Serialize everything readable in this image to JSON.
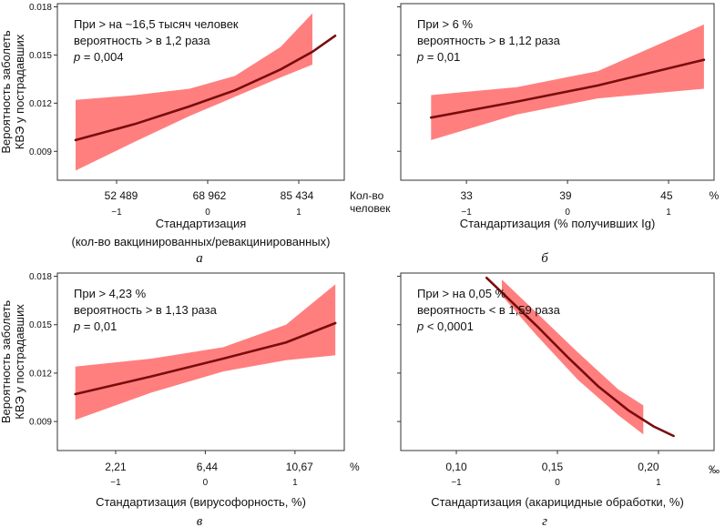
{
  "chart_data": [
    {
      "type": "line",
      "panel_letter": "а",
      "ylabel_lines": [
        "Вероятность заболеть",
        "КВЭ у пострадавших"
      ],
      "xlabel_lines": [
        "Стандартизация",
        "(кол-во вакцинированных/ревакцинированных)"
      ],
      "xlim": [
        -1.65,
        1.5
      ],
      "ylim": [
        0.0072,
        0.0182
      ],
      "xticks": [
        -1,
        0,
        1
      ],
      "xtick_labels": [
        "−1",
        "0",
        "1"
      ],
      "yticks": [
        0.009,
        0.012,
        0.015,
        0.018
      ],
      "ytick_labels": [
        "0.009",
        "0.012",
        "0.015",
        "0.018"
      ],
      "original_values": [
        {
          "x": -0.95,
          "label": "52 489"
        },
        {
          "x": 0.02,
          "label": "68 962"
        },
        {
          "x": 0.98,
          "label": "85 434"
        }
      ],
      "unit_lines": [
        "Кол-во",
        "человек"
      ],
      "annotation": {
        "line1": "При > на ~16,5 тысяч человек",
        "line2": "вероятность > в 1,2 раза",
        "p_symbol": "p",
        "p_rest": " = 0,004"
      },
      "series": {
        "line_x": [
          -1.45,
          -0.8,
          -0.2,
          0.3,
          0.8,
          1.15,
          1.4
        ],
        "line_y": [
          0.0097,
          0.0107,
          0.0118,
          0.0128,
          0.0141,
          0.0152,
          0.0162
        ],
        "band_x": [
          -1.45,
          -0.8,
          -0.2,
          0.3,
          0.8,
          1.15
        ],
        "band_low": [
          0.0078,
          0.0096,
          0.0112,
          0.0124,
          0.0136,
          0.0144
        ],
        "band_high": [
          0.0122,
          0.0125,
          0.0129,
          0.0137,
          0.0155,
          0.0176
        ]
      }
    },
    {
      "type": "line",
      "panel_letter": "б",
      "ylabel_lines": [],
      "xlabel_lines": [
        "Стандартизация (% получивших Ig)"
      ],
      "xlim": [
        -1.65,
        1.45
      ],
      "ylim": [
        0.0072,
        0.0182
      ],
      "xticks": [
        -1,
        0,
        1
      ],
      "xtick_labels": [
        "−1",
        "0",
        "1"
      ],
      "yticks": [
        0.009,
        0.012,
        0.015,
        0.018
      ],
      "ytick_labels": [],
      "original_values": [
        {
          "x": -1.0,
          "label": "33"
        },
        {
          "x": -0.02,
          "label": "39"
        },
        {
          "x": 0.98,
          "label": "45"
        }
      ],
      "unit_lines": [
        "%"
      ],
      "annotation": {
        "line1": "При > 6 %",
        "line2": "вероятность > в 1,12 раза",
        "p_symbol": "p",
        "p_rest": " = 0,01"
      },
      "series": {
        "line_x": [
          -1.35,
          -0.5,
          0.3,
          1.35
        ],
        "line_y": [
          0.0111,
          0.0121,
          0.0131,
          0.0147
        ],
        "band_x": [
          -1.35,
          -0.5,
          0.3,
          1.35
        ],
        "band_low": [
          0.0097,
          0.0113,
          0.0123,
          0.0129
        ],
        "band_high": [
          0.0125,
          0.013,
          0.014,
          0.0169
        ]
      }
    },
    {
      "type": "line",
      "panel_letter": "в",
      "ylabel_lines": [
        "Вероятность заболеть",
        "КВЭ у пострадавших"
      ],
      "xlabel_lines": [
        "Стандартизация (вирусофорность, %)"
      ],
      "xlim": [
        -1.65,
        1.55
      ],
      "ylim": [
        0.0072,
        0.0182
      ],
      "xticks": [
        -1,
        0,
        1
      ],
      "xtick_labels": [
        "−1",
        "0",
        "1"
      ],
      "yticks": [
        0.009,
        0.012,
        0.015,
        0.018
      ],
      "ytick_labels": [
        "0.009",
        "0.012",
        "0.015",
        "0.018"
      ],
      "original_values": [
        {
          "x": -1.0,
          "label": "2,21"
        },
        {
          "x": 0.02,
          "label": "6,44"
        },
        {
          "x": 1.05,
          "label": "10,67"
        }
      ],
      "unit_lines": [
        "%"
      ],
      "annotation": {
        "line1": "При > 4,23 %",
        "line2": "вероятность > в 1,13 раза",
        "p_symbol": "p",
        "p_rest": " = 0,01"
      },
      "series": {
        "line_x": [
          -1.45,
          -0.6,
          0.2,
          0.9,
          1.45
        ],
        "line_y": [
          0.0107,
          0.0118,
          0.0129,
          0.0139,
          0.0151
        ],
        "band_x": [
          -1.45,
          -0.6,
          0.2,
          0.9,
          1.45
        ],
        "band_low": [
          0.0091,
          0.0108,
          0.0121,
          0.0128,
          0.0131
        ],
        "band_high": [
          0.0124,
          0.0129,
          0.0136,
          0.015,
          0.0175
        ]
      }
    },
    {
      "type": "line",
      "panel_letter": "г",
      "ylabel_lines": [],
      "xlabel_lines": [
        "Стандартизация (акарицидные обработки, %)"
      ],
      "xlim": [
        -1.55,
        1.55
      ],
      "ylim": [
        0.0072,
        0.0182
      ],
      "xticks": [
        -1,
        0,
        1
      ],
      "xtick_labels": [
        "−1",
        "0",
        "1"
      ],
      "yticks": [
        0.009,
        0.012,
        0.015,
        0.018
      ],
      "ytick_labels": [],
      "original_values": [
        {
          "x": -1.0,
          "label": "0,10"
        },
        {
          "x": -0.05,
          "label": "0,15"
        },
        {
          "x": 0.9,
          "label": "0,20"
        }
      ],
      "unit_lines": [
        "‰"
      ],
      "annotation": {
        "line1": "При > на 0,05 %",
        "line2": "вероятность < в 1,59 раза",
        "p_symbol": "p",
        "p_rest": " < 0,0001"
      },
      "series": {
        "line_x": [
          -0.7,
          -0.5,
          -0.2,
          0.1,
          0.4,
          0.7,
          0.95,
          1.15
        ],
        "line_y": [
          0.0179,
          0.0167,
          0.0149,
          0.013,
          0.0112,
          0.0097,
          0.0087,
          0.0081
        ],
        "band_x": [
          -0.55,
          -0.2,
          0.2,
          0.6,
          0.85
        ],
        "band_low": [
          0.0168,
          0.0143,
          0.0116,
          0.0094,
          0.0082
        ],
        "band_high": [
          0.0178,
          0.0157,
          0.0133,
          0.011,
          0.01
        ]
      }
    }
  ],
  "colors": {
    "band": "#ff7f7f",
    "line": "#7a0c0c",
    "frame": "#333333"
  }
}
